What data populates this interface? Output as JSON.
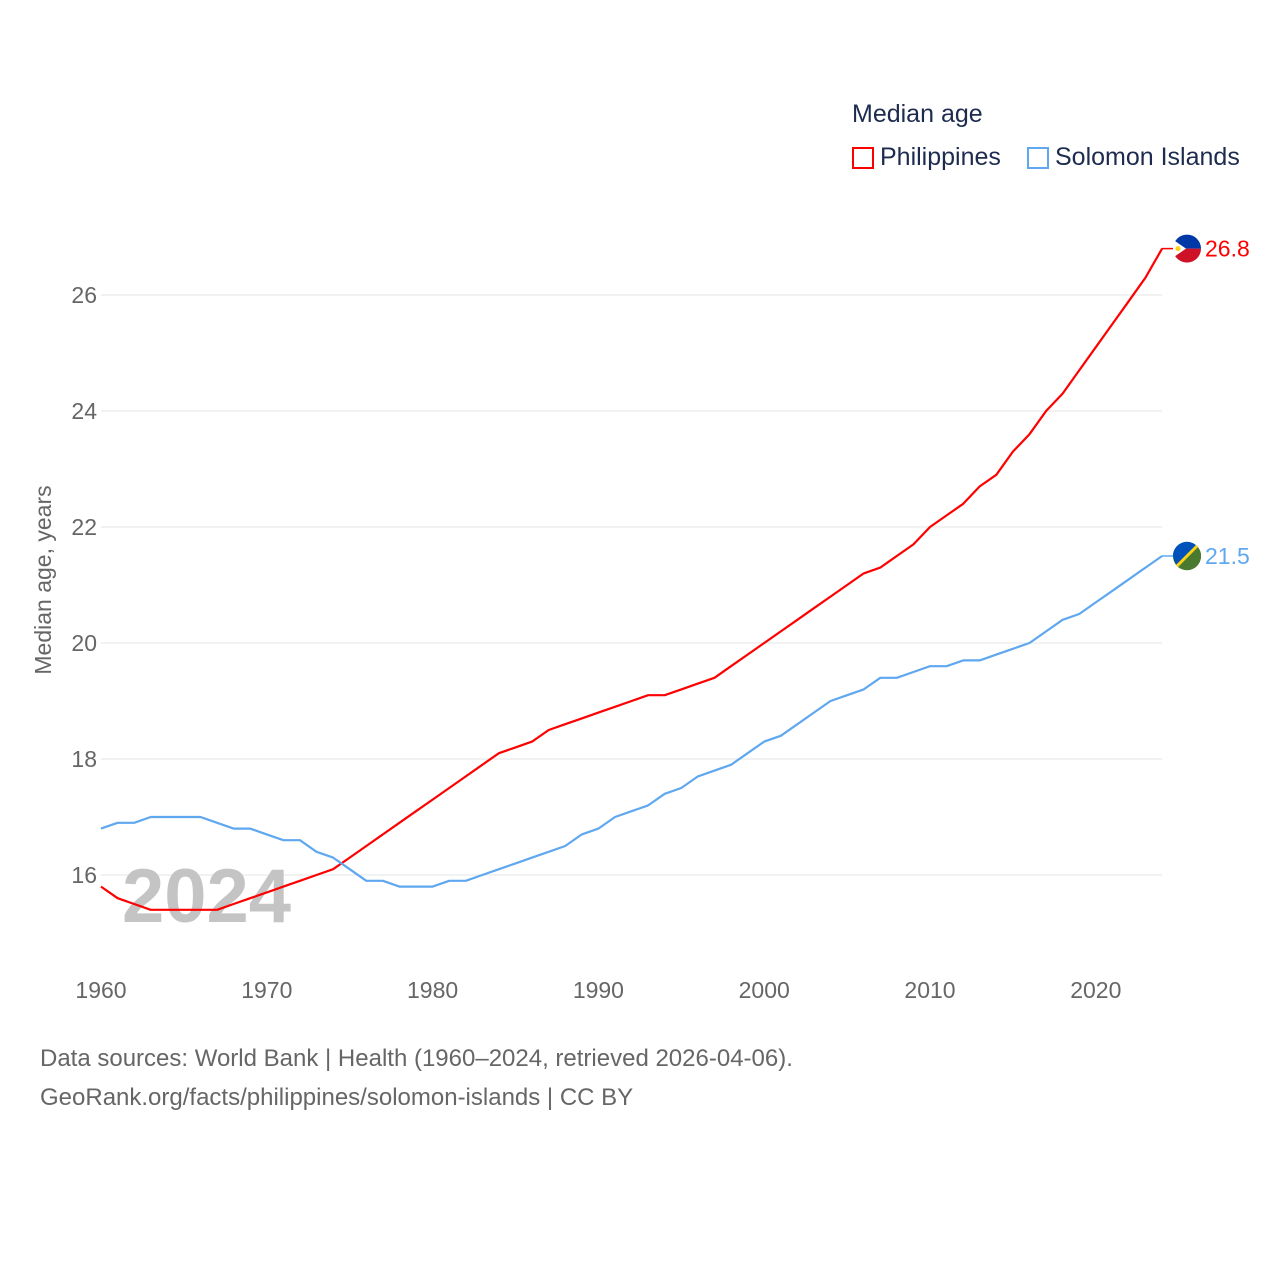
{
  "chart_data": {
    "type": "line",
    "title": "",
    "xlabel": "",
    "ylabel": "Median age, years",
    "legend_title": "Median age",
    "legend_placement": "top-right",
    "xlim": [
      1960,
      2024
    ],
    "ylim": [
      15,
      27.2
    ],
    "x_ticks": [
      "1960",
      "1970",
      "1980",
      "1990",
      "2000",
      "2010",
      "2020"
    ],
    "y_ticks": [
      "16",
      "18",
      "20",
      "22",
      "24",
      "26"
    ],
    "grid": true,
    "watermark_year": "2024",
    "x": [
      1960,
      1961,
      1962,
      1963,
      1964,
      1965,
      1966,
      1967,
      1968,
      1969,
      1970,
      1971,
      1972,
      1973,
      1974,
      1975,
      1976,
      1977,
      1978,
      1979,
      1980,
      1981,
      1982,
      1983,
      1984,
      1985,
      1986,
      1987,
      1988,
      1989,
      1990,
      1991,
      1992,
      1993,
      1994,
      1995,
      1996,
      1997,
      1998,
      1999,
      2000,
      2001,
      2002,
      2003,
      2004,
      2005,
      2006,
      2007,
      2008,
      2009,
      2010,
      2011,
      2012,
      2013,
      2014,
      2015,
      2016,
      2017,
      2018,
      2019,
      2020,
      2021,
      2022,
      2023,
      2024
    ],
    "series": [
      {
        "name": "Philippines",
        "color": "#ff0000",
        "end_label": "26.8",
        "flag": "philippines-flag",
        "values": [
          15.8,
          15.6,
          15.5,
          15.4,
          15.4,
          15.4,
          15.4,
          15.4,
          15.5,
          15.6,
          15.7,
          15.8,
          15.9,
          16.0,
          16.1,
          16.3,
          16.5,
          16.7,
          16.9,
          17.1,
          17.3,
          17.5,
          17.7,
          17.9,
          18.1,
          18.2,
          18.3,
          18.5,
          18.6,
          18.7,
          18.8,
          18.9,
          19.0,
          19.1,
          19.1,
          19.2,
          19.3,
          19.4,
          19.6,
          19.8,
          20.0,
          20.2,
          20.4,
          20.6,
          20.8,
          21.0,
          21.2,
          21.3,
          21.5,
          21.7,
          22.0,
          22.2,
          22.4,
          22.7,
          22.9,
          23.3,
          23.6,
          24.0,
          24.3,
          24.7,
          25.1,
          25.5,
          25.9,
          26.3,
          26.8
        ]
      },
      {
        "name": "Solomon Islands",
        "color": "#5fa8f0",
        "end_label": "21.5",
        "flag": "solomon-islands-flag",
        "values": [
          16.8,
          16.9,
          16.9,
          17.0,
          17.0,
          17.0,
          17.0,
          16.9,
          16.8,
          16.8,
          16.7,
          16.6,
          16.6,
          16.4,
          16.3,
          16.1,
          15.9,
          15.9,
          15.8,
          15.8,
          15.8,
          15.9,
          15.9,
          16.0,
          16.1,
          16.2,
          16.3,
          16.4,
          16.5,
          16.7,
          16.8,
          17.0,
          17.1,
          17.2,
          17.4,
          17.5,
          17.7,
          17.8,
          17.9,
          18.1,
          18.3,
          18.4,
          18.6,
          18.8,
          19.0,
          19.1,
          19.2,
          19.4,
          19.4,
          19.5,
          19.6,
          19.6,
          19.7,
          19.7,
          19.8,
          19.9,
          20.0,
          20.2,
          20.4,
          20.5,
          20.7,
          20.9,
          21.1,
          21.3,
          21.5
        ]
      }
    ]
  },
  "footer": {
    "line1": "Data sources: World Bank | Health (1960–2024, retrieved 2026-04-06).",
    "line2": "GeoRank.org/facts/philippines/solomon-islands | CC BY"
  }
}
